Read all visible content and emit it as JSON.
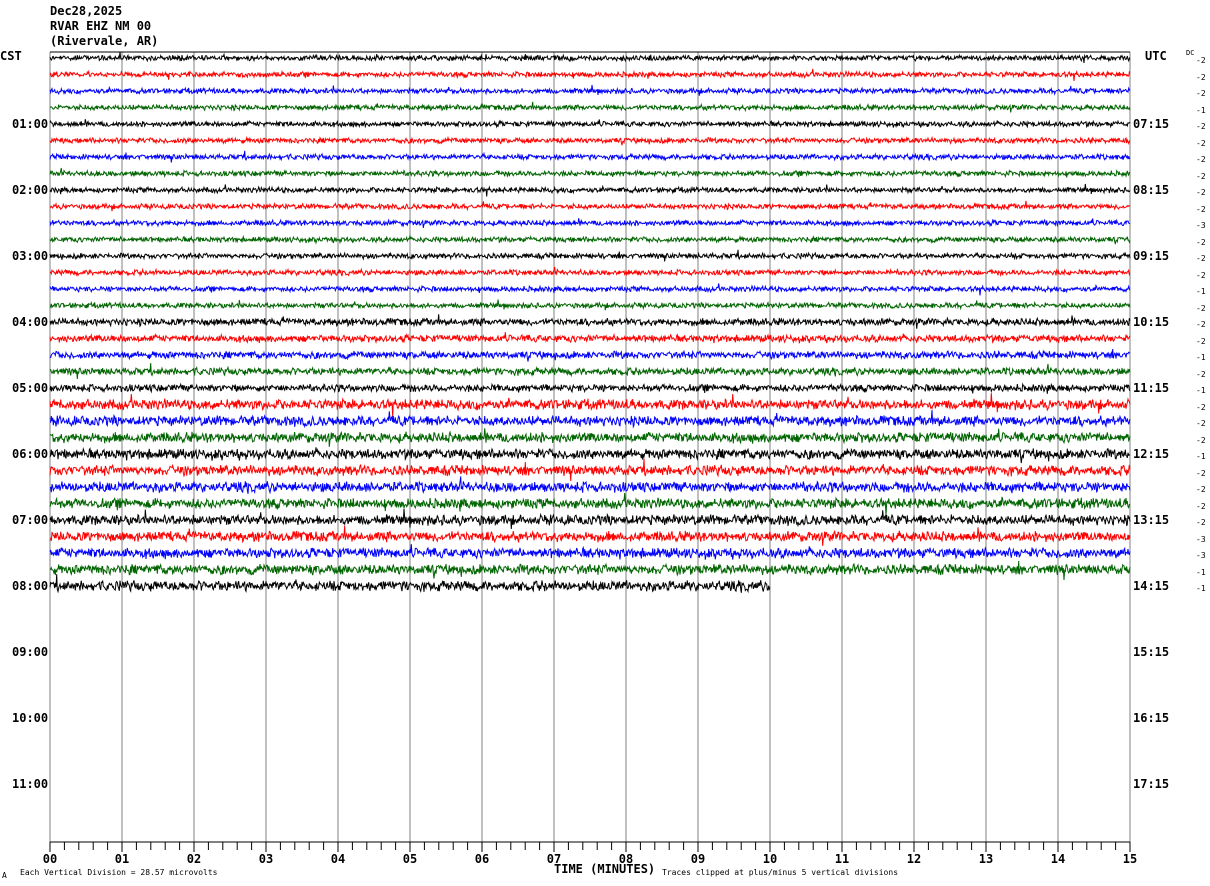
{
  "header": {
    "date": "Dec28,2025",
    "station": "RVAR EHZ NM 00",
    "location": "(Rivervale, AR)"
  },
  "left_tz": "CST",
  "right_tz": "UTC",
  "dc_label": "DC",
  "colors": {
    "trace_cycle": [
      "#000000",
      "#ff0000",
      "#0000ff",
      "#006400"
    ],
    "grid": "#808080"
  },
  "chart_data": {
    "type": "line",
    "subtype": "helicorder",
    "xlabel": "TIME (MINUTES)",
    "xlim": [
      0,
      15
    ],
    "x_ticks": [
      "00",
      "01",
      "02",
      "03",
      "04",
      "05",
      "06",
      "07",
      "08",
      "09",
      "10",
      "11",
      "12",
      "13",
      "14",
      "15"
    ],
    "left_hour_labels": [
      "01:00",
      "02:00",
      "03:00",
      "04:00",
      "05:00",
      "06:00",
      "07:00",
      "08:00",
      "09:00",
      "10:00",
      "11:00"
    ],
    "right_hour_labels": [
      "07:15",
      "08:15",
      "09:15",
      "10:15",
      "11:15",
      "12:15",
      "13:15",
      "14:15",
      "15:15",
      "16:15",
      "17:15"
    ],
    "traces_per_hour": 4,
    "trace_count": 33,
    "last_trace_end_minute": 10,
    "dc_offsets": [
      "-2",
      "-2",
      "-2",
      "-1",
      "-2",
      "-2",
      "-2",
      "-2",
      "-2",
      "-2",
      "-3",
      "-2",
      "-2",
      "-2",
      "-1",
      "-2",
      "-2",
      "-2",
      "-1",
      "-2",
      "-1",
      "-2",
      "-2",
      "-2",
      "-1",
      "-2",
      "-2",
      "-2",
      "-2",
      "-3",
      "-3",
      "-1",
      "-1"
    ],
    "grid": true
  },
  "footer": {
    "scale": "Each Vertical Division =   28.57 microvolts",
    "clip": "Traces clipped at plus/minus 5 vertical divisions",
    "corner": "A"
  }
}
